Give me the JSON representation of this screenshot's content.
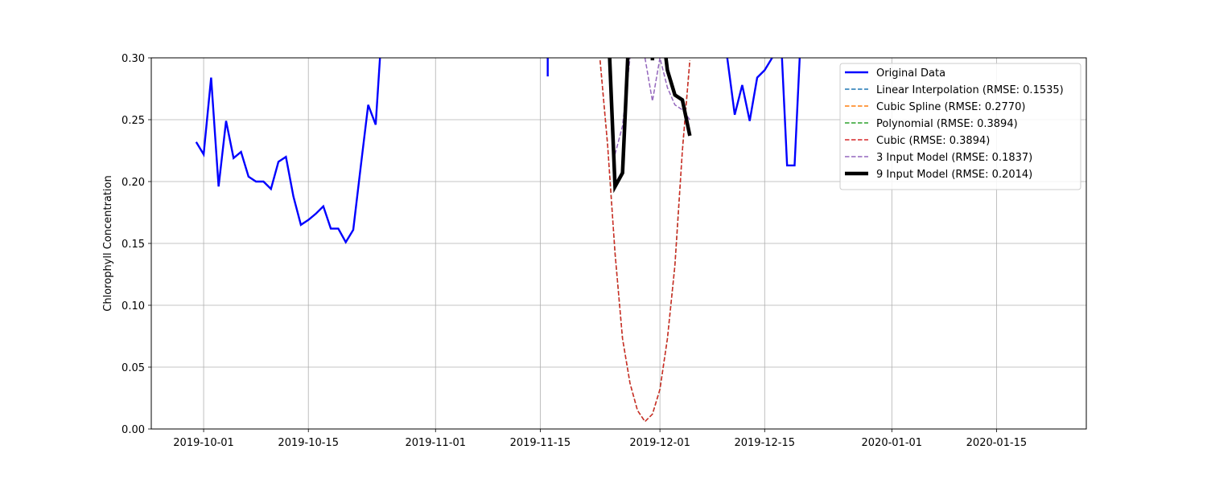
{
  "chart_data": {
    "type": "line",
    "title": "",
    "xlabel": "",
    "ylabel": "Chlorophyll Concentration",
    "ylim": [
      0.0,
      0.3
    ],
    "xlim": [
      "2019-09-24",
      "2020-01-27"
    ],
    "grid": true,
    "legend_position": "top-right",
    "x_ticks": [
      "2019-10-01",
      "2019-10-15",
      "2019-11-01",
      "2019-11-15",
      "2019-12-01",
      "2019-12-15",
      "2020-01-01",
      "2020-01-15"
    ],
    "y_ticks": [
      "0.00",
      "0.05",
      "0.10",
      "0.15",
      "0.20",
      "0.25",
      "0.30"
    ],
    "series": [
      {
        "name": "Original Data",
        "color": "#0000ff",
        "style": "solid",
        "width": 2.4,
        "points": [
          [
            "2019-09-30",
            0.232
          ],
          [
            "2019-10-01",
            0.222
          ],
          [
            "2019-10-02",
            0.284
          ],
          [
            "2019-10-03",
            0.196
          ],
          [
            "2019-10-04",
            0.249
          ],
          [
            "2019-10-05",
            0.219
          ],
          [
            "2019-10-06",
            0.224
          ],
          [
            "2019-10-07",
            0.204
          ],
          [
            "2019-10-08",
            0.2
          ],
          [
            "2019-10-09",
            0.2
          ],
          [
            "2019-10-10",
            0.194
          ],
          [
            "2019-10-11",
            0.216
          ],
          [
            "2019-10-12",
            0.22
          ],
          [
            "2019-10-13",
            0.188
          ],
          [
            "2019-10-14",
            0.165
          ],
          [
            "2019-10-15",
            0.169
          ],
          [
            "2019-10-16",
            0.174
          ],
          [
            "2019-10-17",
            0.18
          ],
          [
            "2019-10-18",
            0.162
          ],
          [
            "2019-10-19",
            0.162
          ],
          [
            "2019-10-20",
            0.151
          ],
          [
            "2019-10-21",
            0.161
          ],
          [
            "2019-10-22",
            0.212
          ],
          [
            "2019-10-23",
            0.262
          ],
          [
            "2019-10-24",
            0.246
          ],
          [
            "2019-10-25",
            0.34
          ],
          null,
          [
            "2019-11-16",
            0.285
          ],
          [
            "2019-11-16",
            0.34
          ],
          null,
          [
            "2019-12-09",
            0.34
          ],
          [
            "2019-12-10",
            0.3
          ],
          [
            "2019-12-11",
            0.254
          ],
          [
            "2019-12-12",
            0.278
          ],
          [
            "2019-12-13",
            0.249
          ],
          [
            "2019-12-14",
            0.284
          ],
          [
            "2019-12-15",
            0.29
          ],
          [
            "2019-12-16",
            0.3
          ],
          [
            "2019-12-17",
            0.34
          ],
          [
            "2019-12-18",
            0.213
          ],
          [
            "2019-12-19",
            0.213
          ],
          [
            "2019-12-20",
            0.34
          ]
        ]
      },
      {
        "name": "Linear Interpolation (RMSE: 0.1535)",
        "color": "#1f77b4",
        "style": "dashed",
        "width": 1.5,
        "points": []
      },
      {
        "name": "Cubic Spline (RMSE: 0.2770)",
        "color": "#ff7f0e",
        "style": "dashed",
        "width": 1.5,
        "points": []
      },
      {
        "name": "Polynomial (RMSE: 0.3894)",
        "color": "#2ca02c",
        "style": "dashed",
        "width": 1.5,
        "points": [
          [
            "2019-11-23",
            0.298
          ],
          [
            "2019-11-24",
            0.23
          ],
          [
            "2019-11-25",
            0.142
          ],
          [
            "2019-11-26",
            0.073
          ],
          [
            "2019-11-27",
            0.037
          ],
          [
            "2019-11-28",
            0.015
          ],
          [
            "2019-11-29",
            0.006
          ],
          [
            "2019-11-30",
            0.012
          ],
          [
            "2019-12-01",
            0.032
          ],
          [
            "2019-12-02",
            0.073
          ],
          [
            "2019-12-03",
            0.132
          ],
          [
            "2019-12-04",
            0.225
          ],
          [
            "2019-12-05",
            0.298
          ]
        ]
      },
      {
        "name": "Cubic (RMSE: 0.3894)",
        "color": "#d62728",
        "style": "dashed",
        "width": 1.5,
        "points": [
          [
            "2019-11-23",
            0.298
          ],
          [
            "2019-11-24",
            0.23
          ],
          [
            "2019-11-25",
            0.142
          ],
          [
            "2019-11-26",
            0.073
          ],
          [
            "2019-11-27",
            0.037
          ],
          [
            "2019-11-28",
            0.015
          ],
          [
            "2019-11-29",
            0.006
          ],
          [
            "2019-11-30",
            0.012
          ],
          [
            "2019-12-01",
            0.032
          ],
          [
            "2019-12-02",
            0.073
          ],
          [
            "2019-12-03",
            0.132
          ],
          [
            "2019-12-04",
            0.225
          ],
          [
            "2019-12-05",
            0.298
          ]
        ]
      },
      {
        "name": "3 Input Model (RMSE: 0.1837)",
        "color": "#9467bd",
        "style": "dashed",
        "width": 1.5,
        "points": [
          [
            "2019-11-25",
            0.222
          ],
          [
            "2019-11-26",
            0.245
          ],
          [
            "2019-11-27",
            0.3
          ],
          null,
          [
            "2019-11-29",
            0.3
          ],
          [
            "2019-11-30",
            0.265
          ],
          [
            "2019-12-01",
            0.3
          ],
          [
            "2019-12-02",
            0.276
          ],
          [
            "2019-12-03",
            0.262
          ],
          [
            "2019-12-04",
            0.258
          ],
          [
            "2019-12-05",
            0.25
          ]
        ]
      },
      {
        "name": "9 Input Model (RMSE: 0.2014)",
        "color": "#000000",
        "style": "solid",
        "width": 4.5,
        "points": [
          [
            "2019-11-24",
            0.34
          ],
          [
            "2019-11-25",
            0.196
          ],
          [
            "2019-11-26",
            0.207
          ],
          [
            "2019-11-27",
            0.34
          ],
          null,
          [
            "2019-11-30",
            0.298
          ],
          [
            "2019-11-30",
            0.31
          ],
          null,
          [
            "2019-12-01",
            0.34
          ],
          [
            "2019-12-02",
            0.29
          ],
          [
            "2019-12-03",
            0.27
          ],
          [
            "2019-12-04",
            0.266
          ],
          [
            "2019-12-05",
            0.237
          ]
        ]
      }
    ]
  }
}
